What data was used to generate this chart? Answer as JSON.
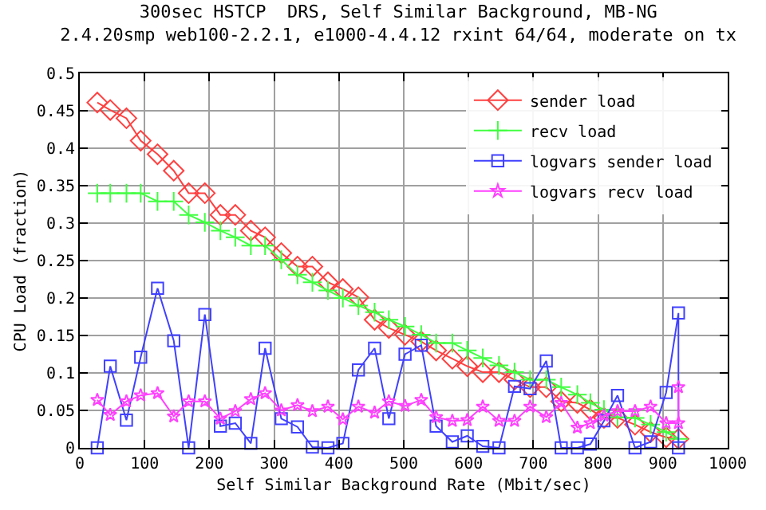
{
  "chart_data": {
    "type": "line",
    "title": "300sec HSTCP  DRS, Self Similar Background, MB-NG\n2.4.20smp web100-2.2.1, e1000-4.4.12 rxint 64/64, moderate on tx",
    "xlabel": "Self Similar Background Rate (Mbit/sec)",
    "ylabel": "CPU Load (fraction)",
    "x": [
      27,
      47,
      72,
      94,
      120,
      145,
      168,
      193,
      217,
      240,
      264,
      286,
      311,
      336,
      359,
      383,
      406,
      430,
      455,
      477,
      502,
      527,
      550,
      575,
      598,
      622,
      647,
      671,
      695,
      720,
      743,
      768,
      788,
      809,
      830,
      857,
      881,
      905,
      924
    ],
    "xlim": [
      0,
      1000
    ],
    "xticks": [
      0,
      100,
      200,
      300,
      400,
      500,
      600,
      700,
      800,
      900,
      1000
    ],
    "ylim": [
      0,
      0.5
    ],
    "yticks": [
      0,
      0.05,
      0.1,
      0.15,
      0.2,
      0.25,
      0.3,
      0.35,
      0.4,
      0.45,
      0.5
    ],
    "grid": true,
    "legend": "top right",
    "line_style": "solid",
    "series": [
      {
        "name": "sender load",
        "color": "#ff4040",
        "marker": "diamond",
        "values": [
          0.461,
          0.451,
          0.44,
          0.41,
          0.392,
          0.37,
          0.34,
          0.34,
          0.311,
          0.311,
          0.29,
          0.281,
          0.26,
          0.242,
          0.242,
          0.221,
          0.212,
          0.201,
          0.171,
          0.16,
          0.151,
          0.142,
          0.13,
          0.119,
          0.109,
          0.101,
          0.101,
          0.091,
          0.081,
          0.081,
          0.062,
          0.06,
          0.051,
          0.04,
          0.04,
          0.031,
          0.021,
          0.014,
          0.012
        ]
      },
      {
        "name": "recv load",
        "color": "#40ff40",
        "marker": "cross",
        "values": [
          0.34,
          0.34,
          0.34,
          0.34,
          0.329,
          0.329,
          0.311,
          0.301,
          0.29,
          0.281,
          0.27,
          0.27,
          0.251,
          0.231,
          0.221,
          0.21,
          0.2,
          0.19,
          0.181,
          0.171,
          0.162,
          0.151,
          0.14,
          0.14,
          0.13,
          0.12,
          0.11,
          0.101,
          0.091,
          0.091,
          0.081,
          0.071,
          0.06,
          0.051,
          0.041,
          0.04,
          0.031,
          0.021,
          0.012
        ]
      },
      {
        "name": "logvars sender load",
        "color": "#4040ff",
        "marker": "square",
        "x": [
          27,
          47,
          72,
          94,
          120,
          145,
          168,
          193,
          217,
          240,
          264,
          286,
          311,
          336,
          359,
          383,
          406,
          430,
          455,
          477,
          502,
          527,
          550,
          575,
          598,
          622,
          647,
          671,
          695,
          720,
          743,
          768,
          788,
          809,
          830,
          857,
          881,
          905,
          924,
          924
        ],
        "values": [
          0,
          0.109,
          0.037,
          0.121,
          0.213,
          0.143,
          0,
          0.178,
          0.029,
          0.033,
          0.006,
          0.133,
          0.039,
          0.028,
          0.001,
          0,
          0.006,
          0.104,
          0.133,
          0.039,
          0.125,
          0.137,
          0.029,
          0.008,
          0.016,
          0.002,
          0,
          0.082,
          0.079,
          0.116,
          0,
          0,
          0.005,
          0.036,
          0.07,
          0,
          0.008,
          0.074,
          0.18,
          0
        ]
      },
      {
        "name": "logvars recv load",
        "color": "#ff40ff",
        "marker": "star",
        "x": [
          27,
          47,
          72,
          94,
          120,
          145,
          168,
          193,
          217,
          240,
          264,
          286,
          311,
          336,
          359,
          383,
          406,
          430,
          455,
          477,
          502,
          527,
          550,
          575,
          598,
          622,
          647,
          671,
          695,
          720,
          743,
          768,
          788,
          809,
          830,
          857,
          881,
          905,
          924,
          924
        ],
        "values": [
          0.064,
          0.044,
          0.062,
          0.07,
          0.073,
          0.042,
          0.062,
          0.062,
          0.039,
          0.049,
          0.065,
          0.073,
          0.05,
          0.057,
          0.049,
          0.055,
          0.038,
          0.055,
          0.047,
          0.062,
          0.056,
          0.064,
          0.041,
          0.036,
          0.037,
          0.055,
          0.036,
          0.036,
          0.055,
          0.041,
          0.06,
          0.027,
          0.033,
          0.043,
          0.049,
          0.049,
          0.055,
          0.033,
          0.033,
          0.081
        ]
      }
    ]
  }
}
